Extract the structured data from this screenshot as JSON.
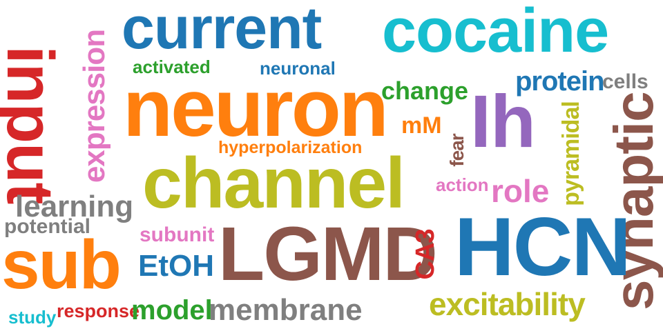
{
  "palette": {
    "blue": "#1f77b4",
    "cyan": "#17becf",
    "green": "#2ca02c",
    "red": "#d62728",
    "orange": "#ff7f0e",
    "purple": "#9467bd",
    "brown": "#8c564b",
    "pink": "#e377c2",
    "gray": "#7f7f7f",
    "olive": "#bcbd22"
  },
  "words": [
    {
      "text": "current",
      "color": "#1f77b4"
    },
    {
      "text": "cocaine",
      "color": "#17becf"
    },
    {
      "text": "activated",
      "color": "#2ca02c"
    },
    {
      "text": "neuronal",
      "color": "#1f77b4"
    },
    {
      "text": "input",
      "color": "#d62728"
    },
    {
      "text": "expression",
      "color": "#e377c2"
    },
    {
      "text": "neuron",
      "color": "#ff7f0e"
    },
    {
      "text": "change",
      "color": "#2ca02c"
    },
    {
      "text": "protein",
      "color": "#1f77b4"
    },
    {
      "text": "cells",
      "color": "#7f7f7f"
    },
    {
      "text": "Ih",
      "color": "#9467bd"
    },
    {
      "text": "mM",
      "color": "#ff7f0e"
    },
    {
      "text": "pyramidal",
      "color": "#bcbd22"
    },
    {
      "text": "synaptic",
      "color": "#8c564b"
    },
    {
      "text": "hyperpolarization",
      "color": "#ff7f0e"
    },
    {
      "text": "fear",
      "color": "#8c564b"
    },
    {
      "text": "channel",
      "color": "#bcbd22"
    },
    {
      "text": "action",
      "color": "#e377c2"
    },
    {
      "text": "role",
      "color": "#e377c2"
    },
    {
      "text": "learning",
      "color": "#7f7f7f"
    },
    {
      "text": "potential",
      "color": "#7f7f7f"
    },
    {
      "text": "subunit",
      "color": "#e377c2"
    },
    {
      "text": "LGMD",
      "color": "#8c564b"
    },
    {
      "text": "CA3",
      "color": "#d62728"
    },
    {
      "text": "HCN",
      "color": "#1f77b4"
    },
    {
      "text": "sub",
      "color": "#ff7f0e"
    },
    {
      "text": "EtOH",
      "color": "#1f77b4"
    },
    {
      "text": "excitability",
      "color": "#bcbd22"
    },
    {
      "text": "study",
      "color": "#17becf"
    },
    {
      "text": "response",
      "color": "#d62728"
    },
    {
      "text": "model",
      "color": "#2ca02c"
    },
    {
      "text": "membrane",
      "color": "#7f7f7f"
    }
  ]
}
